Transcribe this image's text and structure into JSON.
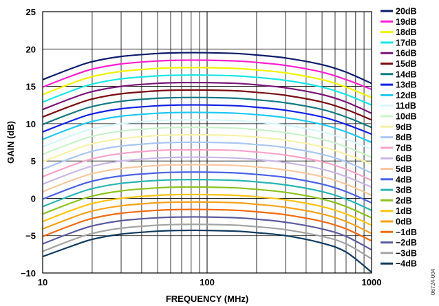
{
  "chart_data": {
    "type": "line",
    "xlabel": "FREQUENCY (MHz)",
    "ylabel": "GAIN (dB)",
    "x_scale": "log",
    "xlim": [
      10,
      1000
    ],
    "ylim": [
      -10,
      25
    ],
    "grid": true,
    "legend_position": "right",
    "figure_id": "06724-004",
    "x_ticks": [
      {
        "value": 10,
        "label": "10"
      },
      {
        "value": 100,
        "label": "100"
      },
      {
        "value": 1000,
        "label": "1000"
      }
    ],
    "y_ticks": [
      {
        "value": 25,
        "label": "25"
      },
      {
        "value": 20,
        "label": "20"
      },
      {
        "value": 15,
        "label": "15"
      },
      {
        "value": 10,
        "label": "10"
      },
      {
        "value": 5,
        "label": "5"
      },
      {
        "value": 0,
        "label": "0"
      },
      {
        "value": -5,
        "label": "−5"
      },
      {
        "value": -10,
        "label": "−10"
      }
    ],
    "x": [
      10,
      15,
      20,
      30,
      50,
      70,
      100,
      150,
      200,
      300,
      500,
      700,
      1000
    ],
    "series": [
      {
        "name": "20dB",
        "color": "#0b1a6b",
        "values": [
          15.9,
          17.4,
          18.3,
          19.0,
          19.4,
          19.5,
          19.5,
          19.4,
          19.2,
          18.8,
          17.9,
          16.9,
          15.4
        ]
      },
      {
        "name": "19dB",
        "color": "#ff1fd0",
        "values": [
          14.9,
          16.4,
          17.3,
          18.0,
          18.4,
          18.5,
          18.5,
          18.4,
          18.2,
          17.8,
          16.9,
          15.9,
          14.6
        ]
      },
      {
        "name": "18dB",
        "color": "#f2f200",
        "values": [
          13.9,
          15.4,
          16.3,
          17.0,
          17.4,
          17.5,
          17.5,
          17.4,
          17.2,
          16.8,
          15.9,
          14.9,
          13.5
        ]
      },
      {
        "name": "17dB",
        "color": "#19e6e6",
        "values": [
          12.9,
          14.4,
          15.3,
          16.0,
          16.4,
          16.5,
          16.5,
          16.4,
          16.2,
          15.8,
          14.9,
          13.9,
          12.5
        ]
      },
      {
        "name": "16dB",
        "color": "#7a1378",
        "values": [
          11.9,
          13.4,
          14.3,
          15.0,
          15.4,
          15.5,
          15.5,
          15.4,
          15.2,
          14.8,
          13.9,
          12.9,
          11.4
        ]
      },
      {
        "name": "15dB",
        "color": "#7a0a10",
        "values": [
          10.9,
          12.4,
          13.3,
          14.0,
          14.4,
          14.5,
          14.5,
          14.4,
          14.2,
          13.8,
          12.9,
          11.9,
          10.5
        ]
      },
      {
        "name": "14dB",
        "color": "#137a84",
        "values": [
          9.9,
          11.4,
          12.3,
          13.0,
          13.4,
          13.5,
          13.5,
          13.4,
          13.2,
          12.8,
          11.9,
          10.9,
          9.5
        ]
      },
      {
        "name": "13dB",
        "color": "#1020e6",
        "values": [
          8.9,
          10.4,
          11.3,
          12.0,
          12.4,
          12.5,
          12.5,
          12.4,
          12.2,
          11.8,
          10.9,
          9.9,
          8.6
        ]
      },
      {
        "name": "12dB",
        "color": "#1ec8f5",
        "values": [
          7.9,
          9.4,
          10.3,
          11.0,
          11.4,
          11.5,
          11.5,
          11.4,
          11.2,
          10.8,
          9.9,
          8.9,
          7.5
        ]
      },
      {
        "name": "11dB",
        "color": "#d6f6fb",
        "values": [
          6.9,
          8.4,
          9.3,
          10.0,
          10.4,
          10.5,
          10.5,
          10.4,
          10.2,
          9.8,
          8.9,
          7.9,
          6.6
        ]
      },
      {
        "name": "10dB",
        "color": "#c9f2cb",
        "values": [
          5.9,
          7.4,
          8.3,
          9.0,
          9.4,
          9.5,
          9.5,
          9.4,
          9.2,
          8.8,
          7.9,
          6.9,
          5.5
        ]
      },
      {
        "name": "9dB",
        "color": "#f7f2a8",
        "values": [
          4.9,
          6.4,
          7.3,
          8.0,
          8.4,
          8.5,
          8.5,
          8.4,
          8.2,
          7.8,
          6.9,
          5.9,
          4.6
        ]
      },
      {
        "name": "8dB",
        "color": "#a8c6f2",
        "values": [
          3.9,
          5.4,
          6.3,
          7.0,
          7.4,
          7.5,
          7.5,
          7.4,
          7.2,
          6.8,
          5.9,
          4.9,
          3.4
        ]
      },
      {
        "name": "7dB",
        "color": "#f7a3c9",
        "values": [
          2.9,
          4.4,
          5.3,
          6.0,
          6.4,
          6.5,
          6.5,
          6.4,
          6.2,
          5.8,
          4.9,
          3.9,
          2.4
        ]
      },
      {
        "name": "6dB",
        "color": "#c9b6e6",
        "values": [
          1.9,
          3.4,
          4.3,
          5.0,
          5.4,
          5.5,
          5.5,
          5.4,
          5.2,
          4.8,
          3.9,
          2.9,
          1.5
        ]
      },
      {
        "name": "5dB",
        "color": "#f7c79d",
        "values": [
          0.9,
          2.4,
          3.3,
          4.0,
          4.4,
          4.5,
          4.5,
          4.4,
          4.2,
          3.8,
          2.9,
          1.9,
          0.4
        ]
      },
      {
        "name": "4dB",
        "color": "#4a62e6",
        "values": [
          -0.1,
          1.4,
          2.3,
          3.0,
          3.4,
          3.5,
          3.5,
          3.4,
          3.2,
          2.8,
          1.9,
          0.9,
          -0.6
        ]
      },
      {
        "name": "3dB",
        "color": "#28b4b4",
        "values": [
          -1.1,
          0.4,
          1.3,
          2.0,
          2.4,
          2.5,
          2.5,
          2.4,
          2.2,
          1.8,
          0.9,
          -0.1,
          -1.6
        ]
      },
      {
        "name": "2dB",
        "color": "#8cc21e",
        "values": [
          -2.1,
          -0.6,
          0.3,
          1.0,
          1.4,
          1.5,
          1.5,
          1.4,
          1.2,
          0.8,
          -0.1,
          -1.1,
          -2.6
        ]
      },
      {
        "name": "1dB",
        "color": "#ffc312",
        "values": [
          -3.1,
          -1.6,
          -0.7,
          0.0,
          0.4,
          0.5,
          0.5,
          0.4,
          0.2,
          -0.2,
          -1.1,
          -2.1,
          -3.6
        ]
      },
      {
        "name": "0dB",
        "color": "#f7a11a",
        "values": [
          -4.1,
          -2.6,
          -1.7,
          -1.0,
          -0.6,
          -0.5,
          -0.5,
          -0.6,
          -0.8,
          -1.2,
          -2.1,
          -3.1,
          -4.7
        ]
      },
      {
        "name": "−1dB",
        "color": "#f26a0f",
        "values": [
          -5.1,
          -3.6,
          -2.7,
          -2.0,
          -1.6,
          -1.5,
          -1.5,
          -1.6,
          -1.8,
          -2.2,
          -3.1,
          -4.1,
          -5.7
        ]
      },
      {
        "name": "−2dB",
        "color": "#5a5aa0",
        "values": [
          -6.1,
          -4.6,
          -3.7,
          -3.0,
          -2.6,
          -2.5,
          -2.5,
          -2.6,
          -2.8,
          -3.2,
          -4.1,
          -5.1,
          -6.9
        ]
      },
      {
        "name": "−3dB",
        "color": "#a3a3a3",
        "values": [
          -7.1,
          -5.6,
          -4.7,
          -4.0,
          -3.6,
          -3.5,
          -3.5,
          -3.6,
          -3.8,
          -4.2,
          -5.1,
          -6.1,
          -8.1
        ]
      },
      {
        "name": "−4dB",
        "color": "#0f3a5e",
        "values": [
          -7.8,
          -6.4,
          -5.5,
          -4.8,
          -4.4,
          -4.3,
          -4.3,
          -4.4,
          -4.6,
          -5.0,
          -6.0,
          -7.2,
          -9.9
        ]
      }
    ]
  }
}
